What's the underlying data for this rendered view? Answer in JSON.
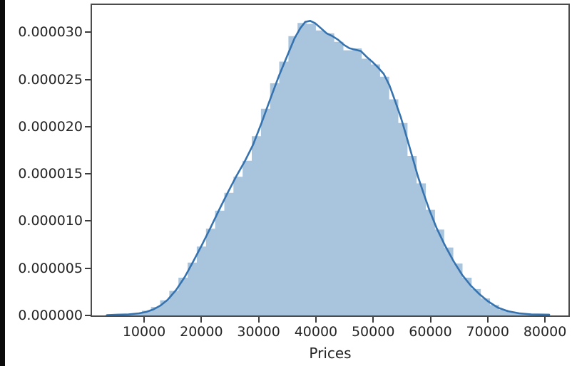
{
  "window": {
    "background_color": "#ffffff",
    "left_strip_color": "#0b0b0b"
  },
  "chart_data": {
    "type": "area",
    "subtype": "histogram_with_kde",
    "title": "",
    "xlabel": "Prices",
    "ylabel": "",
    "grid": false,
    "legend": null,
    "xlim": [
      900,
      84100
    ],
    "ylim": [
      0,
      3.29e-05
    ],
    "y_scale": 1e-06,
    "x_ticks": [
      10000,
      20000,
      30000,
      40000,
      50000,
      60000,
      70000,
      80000
    ],
    "x_tick_labels": [
      "10000",
      "20000",
      "30000",
      "40000",
      "50000",
      "60000",
      "70000",
      "80000"
    ],
    "y_ticks": [
      0,
      5e-06,
      1e-05,
      1.5e-05,
      2e-05,
      2.5e-05,
      3e-05
    ],
    "y_tick_labels": [
      "0.000000",
      "0.000005",
      "0.000010",
      "0.000015",
      "0.000020",
      "0.000025",
      "0.000030"
    ],
    "series": [
      {
        "name": "histogram",
        "type": "bar",
        "fill_color": "#a9c5de",
        "bin_width": 1600,
        "bin_centers": [
          4000,
          5600,
          7200,
          8800,
          10400,
          12000,
          13600,
          15200,
          16800,
          18400,
          20000,
          21600,
          23200,
          24800,
          26400,
          28000,
          29600,
          31200,
          32800,
          34400,
          36000,
          37600,
          39200,
          40800,
          42400,
          44000,
          45600,
          47200,
          48800,
          50400,
          52000,
          53600,
          55200,
          56800,
          58400,
          60000,
          61600,
          63200,
          64800,
          66400,
          68000,
          69600,
          71200,
          72800,
          74400,
          76000,
          77600,
          79200
        ],
        "heights_1e6": [
          0.05,
          0.08,
          0.12,
          0.25,
          0.5,
          0.9,
          1.6,
          2.6,
          4.0,
          5.6,
          7.3,
          9.2,
          11.1,
          13.0,
          14.7,
          16.4,
          19.0,
          21.9,
          24.6,
          26.9,
          29.6,
          31.0,
          30.9,
          30.2,
          29.9,
          29.0,
          28.1,
          28.3,
          27.2,
          26.6,
          25.3,
          22.9,
          20.4,
          16.9,
          14.0,
          11.2,
          9.1,
          7.2,
          5.5,
          4.0,
          2.8,
          1.8,
          1.1,
          0.6,
          0.35,
          0.2,
          0.12,
          0.08
        ]
      },
      {
        "name": "kde",
        "type": "line",
        "stroke_color": "#3673ae",
        "stroke_width": 2.6,
        "x": [
          3520,
          5390,
          7260,
          9130,
          10375,
          11620,
          12865,
          14110,
          15605,
          17100,
          18594,
          20088,
          21583,
          23077,
          24571,
          26066,
          27560,
          29054,
          30549,
          32043,
          33537,
          35032,
          36277,
          37273,
          38145,
          39017,
          39888,
          40884,
          41880,
          42876,
          43873,
          44869,
          45865,
          46861,
          47857,
          48853,
          49849,
          50846,
          51842,
          52838,
          53834,
          54830,
          55826,
          56822,
          57819,
          58815,
          59811,
          61057,
          62551,
          64045,
          65540,
          67034,
          68529,
          70023,
          71767,
          73510,
          75503,
          77620,
          80733
        ],
        "y_1e6": [
          0.04,
          0.08,
          0.11,
          0.23,
          0.38,
          0.64,
          1.06,
          1.66,
          2.72,
          4.08,
          5.74,
          7.47,
          9.29,
          11.17,
          12.99,
          14.72,
          16.31,
          18.12,
          20.46,
          22.95,
          25.37,
          27.56,
          29.37,
          30.43,
          31.11,
          31.22,
          30.96,
          30.43,
          29.9,
          29.6,
          29.22,
          28.69,
          28.31,
          28.16,
          28.01,
          27.41,
          26.88,
          26.28,
          25.6,
          24.39,
          22.73,
          20.99,
          18.95,
          16.84,
          14.72,
          12.91,
          11.18,
          9.29,
          7.4,
          5.74,
          4.3,
          3.17,
          2.27,
          1.51,
          0.83,
          0.45,
          0.23,
          0.11,
          0.08
        ]
      }
    ],
    "axis": {
      "spine_color": "#4c4c4c",
      "tick_color": "#3c3c3c",
      "label_color": "#242424"
    }
  }
}
